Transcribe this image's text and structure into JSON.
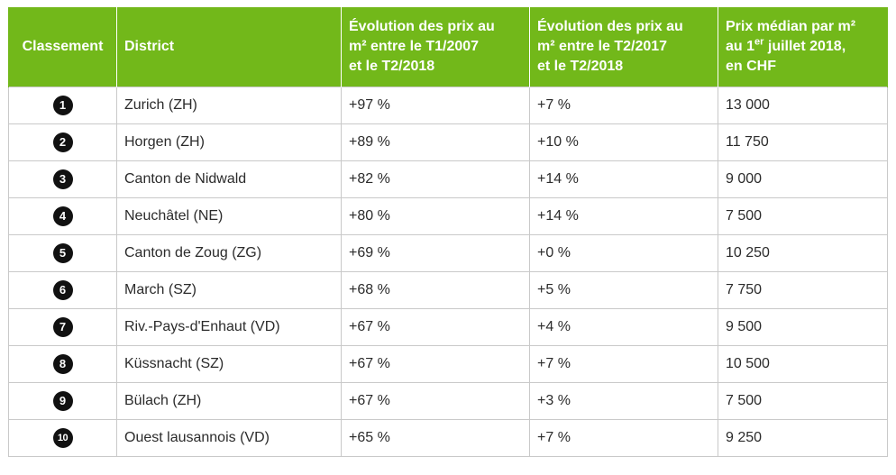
{
  "table": {
    "headers": {
      "rank": "Classement",
      "district": "District",
      "evo_2007_line1": "Évolution des prix au",
      "evo_2007_line2": "m² entre le T1/2007",
      "evo_2007_line3": "et le T2/2018",
      "evo_2017_line1": "Évolution des prix au",
      "evo_2017_line2": "m² entre le T2/2017",
      "evo_2017_line3": "et le T2/2018",
      "price_line1": "Prix médian par m²",
      "price_line2_pre": "au 1",
      "price_line2_sup": "er",
      "price_line2_post": " juillet 2018,",
      "price_line3": "en CHF"
    },
    "rows": [
      {
        "rank": "1",
        "district": "Zurich (ZH)",
        "evo_2007": "+97 %",
        "evo_2017": "+7 %",
        "price": "13 000"
      },
      {
        "rank": "2",
        "district": "Horgen (ZH)",
        "evo_2007": "+89 %",
        "evo_2017": "+10 %",
        "price": "11 750"
      },
      {
        "rank": "3",
        "district": "Canton de Nidwald",
        "evo_2007": "+82 %",
        "evo_2017": "+14 %",
        "price": "9 000"
      },
      {
        "rank": "4",
        "district": "Neuchâtel (NE)",
        "evo_2007": "+80 %",
        "evo_2017": "+14 %",
        "price": "7 500"
      },
      {
        "rank": "5",
        "district": "Canton de Zoug (ZG)",
        "evo_2007": "+69 %",
        "evo_2017": "+0 %",
        "price": "10 250"
      },
      {
        "rank": "6",
        "district": "March (SZ)",
        "evo_2007": "+68 %",
        "evo_2017": "+5 %",
        "price": "7 750"
      },
      {
        "rank": "7",
        "district": "Riv.-Pays-d'Enhaut (VD)",
        "evo_2007": "+67 %",
        "evo_2017": "+4 %",
        "price": "9 500"
      },
      {
        "rank": "8",
        "district": "Küssnacht (SZ)",
        "evo_2007": "+67 %",
        "evo_2017": "+7 %",
        "price": "10 500"
      },
      {
        "rank": "9",
        "district": "Bülach (ZH)",
        "evo_2007": "+67 %",
        "evo_2017": "+3 %",
        "price": "7 500"
      },
      {
        "rank": "10",
        "district": "Ouest lausannois (VD)",
        "evo_2007": "+65 %",
        "evo_2017": "+7 %",
        "price": "9 250"
      }
    ]
  },
  "colors": {
    "header_bg": "#72b81a",
    "header_text": "#ffffff",
    "badge_bg": "#111111",
    "border": "#c9c9c9"
  }
}
